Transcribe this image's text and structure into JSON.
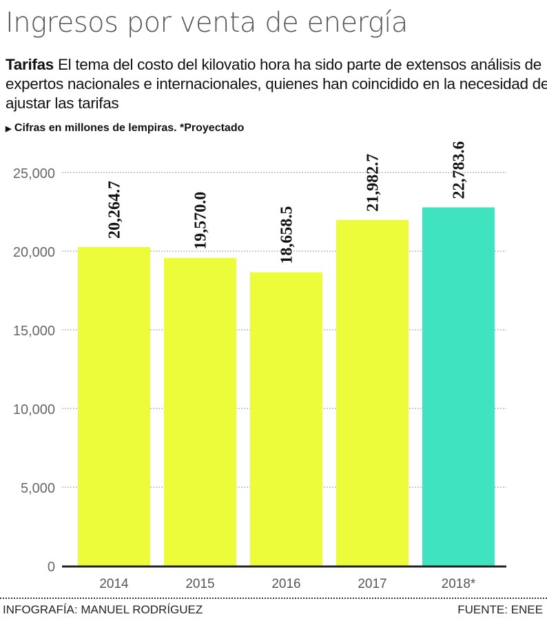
{
  "header": {
    "title": "Ingresos por venta de energía",
    "lead": "Tarifas",
    "subtitle": " El tema del costo del kilovatio hora ha sido parte de extensos análisis de expertos nacionales e internacionales, quienes han coincidido en la necesidad de ajustar las tarifas",
    "note": "Cifras en millones de lempiras. *Proyectado"
  },
  "chart_data": {
    "type": "bar",
    "categories": [
      "2014",
      "2015",
      "2016",
      "2017",
      "2018*"
    ],
    "values": [
      20264.7,
      19570.0,
      18658.5,
      21982.7,
      22783.6
    ],
    "value_labels": [
      "20,264.7",
      "19,570.0",
      "18,658.5",
      "21,982.7",
      "22,783.6"
    ],
    "yticks": [
      "0",
      "5,000",
      "10,000",
      "15,000",
      "20,000",
      "25,000"
    ],
    "ytick_values": [
      0,
      5000,
      10000,
      15000,
      20000,
      25000
    ],
    "ylim": [
      0,
      25000
    ],
    "grid": true,
    "colors": {
      "actual": "#ecfc3a",
      "projected": "#3fe3c0"
    }
  },
  "footer": {
    "credit": "INFOGRAFÍA: MANUEL RODRÍGUEZ",
    "source": "FUENTE: ENEE"
  }
}
